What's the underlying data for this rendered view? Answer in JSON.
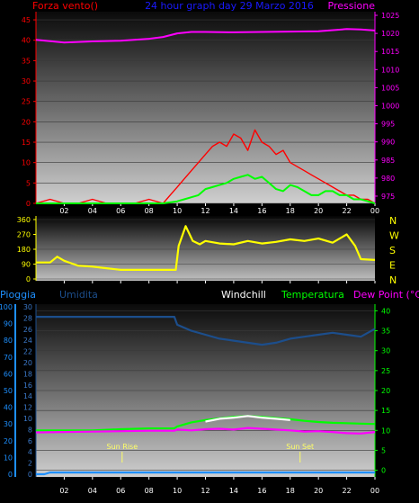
{
  "header": {
    "left": "Forza vento()",
    "center": "24 hour graph day 29 Marzo 2016",
    "right": "Pressione"
  },
  "colors": {
    "wind": "#ff0000",
    "gust": "#00ff00",
    "pressure": "#ff00ff",
    "direction": "#ffff00",
    "rain": "#1e90ff",
    "humidity": "#1c4e8c",
    "windchill": "#ffffff",
    "temperature": "#00ff00",
    "dewpoint": "#ff00ff",
    "title": "#1a1aff"
  },
  "chart_data": [
    {
      "type": "line",
      "title": "24 hour graph day 29 Marzo 2016",
      "x_ticks": [
        "02",
        "04",
        "06",
        "08",
        "10",
        "12",
        "14",
        "16",
        "18",
        "20",
        "22",
        "00"
      ],
      "y_left_label": "Forza vento()",
      "y_left_ticks": [
        0,
        5,
        10,
        15,
        20,
        25,
        30,
        35,
        40,
        45
      ],
      "y_left_lim": [
        0,
        47
      ],
      "y_right_label": "Pressione",
      "y_right_ticks": [
        975,
        980,
        985,
        990,
        995,
        1000,
        1005,
        1010,
        1015,
        1020,
        1025
      ],
      "y_right_lim": [
        973,
        1026
      ],
      "x_lim": [
        0,
        24
      ],
      "series": [
        {
          "axis": "right",
          "color": "pressure",
          "x": [
            0,
            2,
            4,
            6,
            8,
            9,
            10,
            11,
            12,
            14,
            16,
            18,
            20,
            22,
            23,
            24
          ],
          "y": [
            1018.2,
            1017.5,
            1017.8,
            1018.0,
            1018.5,
            1019.0,
            1020.0,
            1020.4,
            1020.4,
            1020.3,
            1020.4,
            1020.5,
            1020.6,
            1021.2,
            1021.1,
            1020.8
          ]
        },
        {
          "axis": "left",
          "color": "wind",
          "x": [
            0,
            1,
            2,
            3,
            4,
            5,
            6,
            7,
            8,
            9,
            9.5,
            10,
            10.5,
            11,
            11.5,
            12,
            12.5,
            13,
            13.5,
            14,
            14.5,
            15,
            15.5,
            16,
            16.5,
            17,
            17.5,
            18,
            18.5,
            19,
            19.5,
            20,
            20.5,
            21,
            21.5,
            22,
            22.5,
            23,
            23.5,
            24
          ],
          "y": [
            0,
            1,
            0,
            0,
            1,
            0,
            0,
            0,
            1,
            0,
            2,
            4,
            6,
            8,
            10,
            12,
            14,
            15,
            14,
            17,
            16,
            13,
            18,
            15,
            14,
            12,
            13,
            10,
            9,
            8,
            7,
            6,
            5,
            4,
            3,
            2,
            2,
            1,
            1,
            0
          ]
        },
        {
          "axis": "left",
          "color": "gust",
          "x": [
            0,
            9,
            10,
            10.5,
            11,
            11.5,
            12,
            12.5,
            13,
            13.5,
            14,
            14.5,
            15,
            15.5,
            16,
            16.5,
            17,
            17.5,
            18,
            18.5,
            19,
            19.5,
            20,
            20.5,
            21,
            21.5,
            22,
            22.5,
            23,
            23.5,
            24
          ],
          "y": [
            0,
            0,
            0.5,
            1,
            1.5,
            2,
            3.5,
            4,
            4.5,
            5,
            6,
            6.5,
            7,
            6,
            6.5,
            5,
            3.5,
            3,
            4.5,
            4,
            3,
            2,
            2,
            3,
            3,
            2,
            2,
            1,
            1,
            0.5,
            0
          ]
        }
      ]
    },
    {
      "type": "line",
      "y_left_ticks": [
        0,
        90,
        180,
        270,
        360
      ],
      "y_left_lim": [
        0,
        360
      ],
      "y_right_ticks": [
        "N",
        "W",
        "S",
        "E",
        "N"
      ],
      "x_lim": [
        0,
        24
      ],
      "series": [
        {
          "name": "",
          "color": "direction",
          "x": [
            0,
            1,
            1.5,
            2,
            2.5,
            3,
            4,
            5,
            6,
            7,
            8,
            9,
            9.9,
            10.1,
            10.6,
            11.1,
            11.6,
            12,
            13,
            14,
            15,
            16,
            17,
            18,
            19,
            20,
            21,
            22,
            22.6,
            23,
            24
          ],
          "y": [
            100,
            100,
            135,
            110,
            95,
            80,
            75,
            65,
            55,
            55,
            55,
            55,
            55,
            200,
            320,
            230,
            210,
            230,
            215,
            210,
            230,
            215,
            225,
            240,
            230,
            245,
            220,
            270,
            200,
            120,
            115
          ]
        }
      ]
    },
    {
      "type": "line",
      "labels": [
        "Pioggia",
        "Umidita",
        "Windchill",
        "Temperatura",
        "Dew Point (°C)"
      ],
      "y_rain_ticks": [
        0,
        10,
        20,
        30,
        40,
        50,
        60,
        70,
        80,
        90,
        100
      ],
      "y_hum_ticks": [
        0,
        2,
        4,
        6,
        8,
        10,
        12,
        14,
        16,
        18,
        20,
        22,
        24,
        26,
        28,
        30
      ],
      "y_temp_ticks": [
        0,
        5,
        10,
        15,
        20,
        25,
        30,
        35,
        40
      ],
      "y_temp_lim": [
        -1,
        41
      ],
      "x_lim": [
        0,
        24
      ],
      "annotations": [
        {
          "text": "Sun Rise",
          "x": 6.1
        },
        {
          "text": "Sun Set",
          "x": 18.7
        }
      ],
      "series": [
        {
          "name": "Umidita",
          "color": "humidity",
          "axis": "temp",
          "x": [
            0,
            2,
            4,
            6,
            8,
            9.8,
            10,
            11,
            12,
            13,
            14,
            15,
            16,
            17,
            18,
            19,
            20,
            21,
            22,
            23,
            24
          ],
          "y": [
            38.5,
            38.5,
            38.5,
            38.5,
            38.5,
            38.5,
            36.5,
            35,
            34,
            33,
            32.5,
            32,
            31.5,
            32,
            33,
            33.5,
            34,
            34.5,
            34,
            33.5,
            35.5
          ]
        },
        {
          "name": "Temperatura",
          "color": "temperature",
          "axis": "temp",
          "x": [
            0,
            2,
            4,
            6,
            8,
            9.8,
            10,
            11,
            12,
            13,
            14,
            15,
            16,
            17,
            18,
            19,
            20,
            21,
            22,
            23,
            24
          ],
          "y": [
            10,
            10,
            10,
            10.3,
            10.5,
            10.5,
            11,
            12,
            12.6,
            13,
            13.4,
            13.6,
            13.4,
            13.1,
            12.8,
            12.4,
            12.1,
            11.9,
            11.8,
            11.7,
            11.6
          ]
        },
        {
          "name": "Windchill",
          "color": "windchill",
          "axis": "temp",
          "x": [
            12,
            13,
            14,
            15,
            16,
            17,
            18
          ],
          "y": [
            12.2,
            12.9,
            13.2,
            13.6,
            13.2,
            12.9,
            12.6
          ]
        },
        {
          "name": "Dew Point (°C)",
          "color": "dewpoint",
          "axis": "temp",
          "x": [
            0,
            2,
            4,
            6,
            8,
            9.8,
            10,
            11,
            12,
            13,
            14,
            15,
            16,
            17,
            18,
            19,
            20,
            21,
            22,
            23,
            24
          ],
          "y": [
            9.5,
            9.6,
            9.7,
            9.8,
            9.9,
            9.9,
            10.2,
            10,
            10.3,
            10.4,
            10.2,
            10.6,
            10.4,
            10.2,
            10,
            9.7,
            9.8,
            9.6,
            9.3,
            9.2,
            9.6
          ]
        },
        {
          "name": "Pioggia",
          "color": "rain",
          "axis": "rain",
          "x": [
            0,
            0.6,
            1,
            24
          ],
          "y": [
            0,
            0,
            1,
            1
          ]
        }
      ]
    }
  ]
}
